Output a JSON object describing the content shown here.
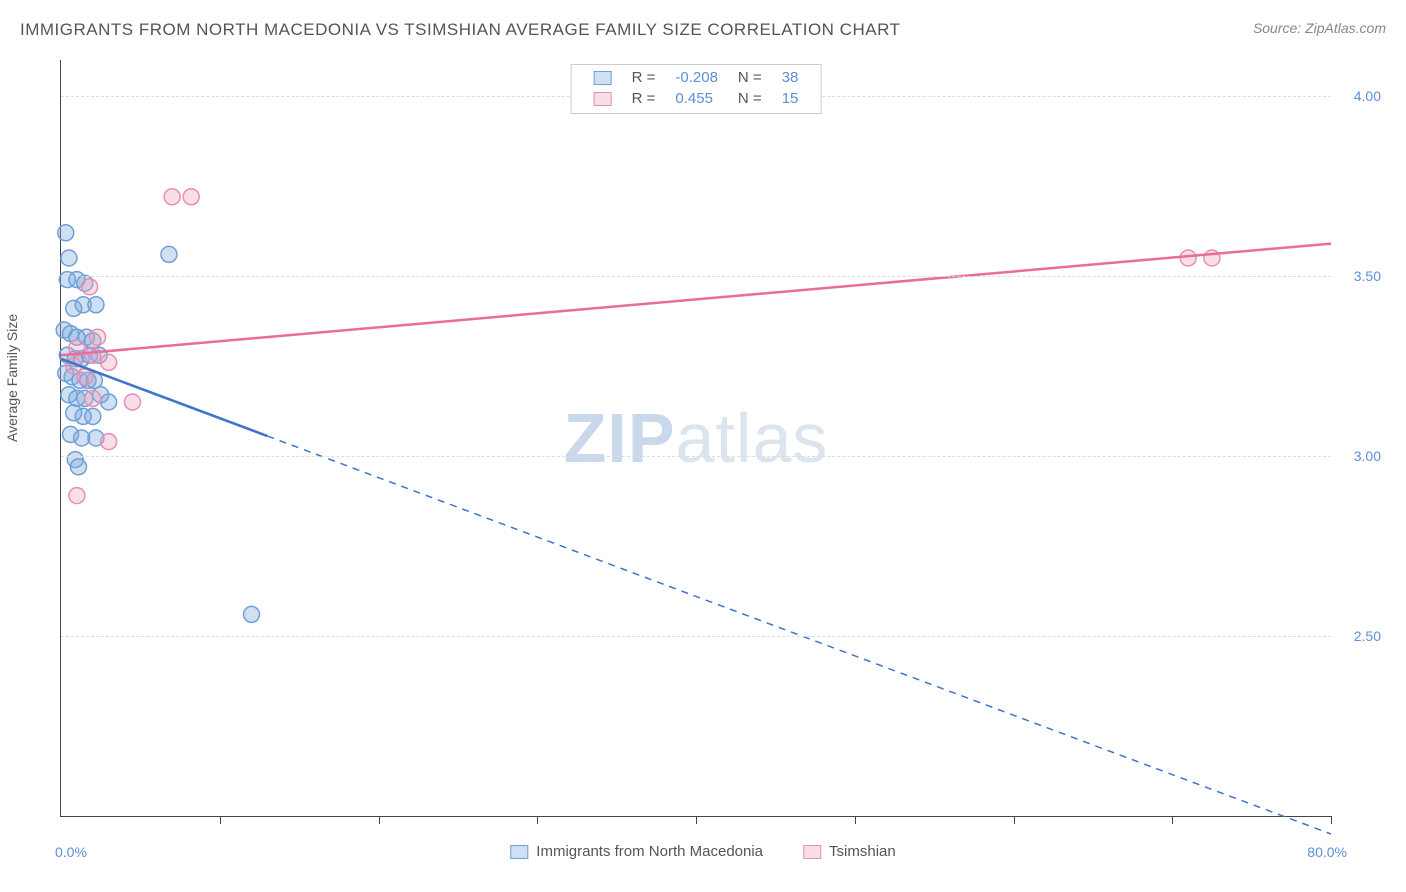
{
  "title": "IMMIGRANTS FROM NORTH MACEDONIA VS TSIMSHIAN AVERAGE FAMILY SIZE CORRELATION CHART",
  "source_label": "Source:",
  "source_name": "ZipAtlas.com",
  "y_axis_label": "Average Family Size",
  "watermark_a": "ZIP",
  "watermark_b": "atlas",
  "chart": {
    "type": "scatter-with-regression",
    "xlim": [
      0,
      80
    ],
    "ylim": [
      2.0,
      4.1
    ],
    "x_min_label": "0.0%",
    "x_max_label": "80.0%",
    "y_ticks": [
      2.5,
      3.0,
      3.5,
      4.0
    ],
    "y_tick_labels": [
      "2.50",
      "3.00",
      "3.50",
      "4.00"
    ],
    "x_ticks": [
      10,
      20,
      30,
      40,
      50,
      60,
      70,
      80
    ],
    "grid_color": "#dddddd",
    "axis_color": "#444444",
    "tick_label_color": "#5b8fd6",
    "background_color": "#ffffff",
    "marker_radius": 8,
    "marker_stroke_width": 1.5,
    "line_width": 2.5,
    "series": [
      {
        "name": "Immigrants from North Macedonia",
        "color_fill": "rgba(120,165,220,0.35)",
        "color_stroke": "#6f9fd8",
        "line_color": "#3f74c8",
        "r_value": "-0.208",
        "n_value": "38",
        "regression": {
          "x1": 0,
          "y1": 3.27,
          "x2": 80,
          "y2": 1.95,
          "solid_until_x": 13
        },
        "points": [
          [
            0.3,
            3.62
          ],
          [
            0.5,
            3.55
          ],
          [
            0.4,
            3.49
          ],
          [
            1.0,
            3.49
          ],
          [
            1.5,
            3.48
          ],
          [
            0.8,
            3.41
          ],
          [
            1.4,
            3.42
          ],
          [
            2.2,
            3.42
          ],
          [
            6.8,
            3.56
          ],
          [
            0.2,
            3.35
          ],
          [
            0.6,
            3.34
          ],
          [
            1.0,
            3.33
          ],
          [
            1.6,
            3.33
          ],
          [
            2.0,
            3.32
          ],
          [
            0.4,
            3.28
          ],
          [
            0.9,
            3.27
          ],
          [
            1.3,
            3.27
          ],
          [
            1.8,
            3.28
          ],
          [
            2.4,
            3.28
          ],
          [
            0.3,
            3.23
          ],
          [
            0.7,
            3.22
          ],
          [
            1.2,
            3.21
          ],
          [
            1.7,
            3.21
          ],
          [
            2.1,
            3.21
          ],
          [
            0.5,
            3.17
          ],
          [
            1.0,
            3.16
          ],
          [
            1.5,
            3.16
          ],
          [
            2.5,
            3.17
          ],
          [
            3.0,
            3.15
          ],
          [
            0.8,
            3.12
          ],
          [
            1.4,
            3.11
          ],
          [
            2.0,
            3.11
          ],
          [
            0.6,
            3.06
          ],
          [
            1.3,
            3.05
          ],
          [
            2.2,
            3.05
          ],
          [
            0.9,
            2.99
          ],
          [
            1.1,
            2.97
          ],
          [
            12.0,
            2.56
          ]
        ]
      },
      {
        "name": "Tsimshian",
        "color_fill": "rgba(240,160,185,0.35)",
        "color_stroke": "#e68fb0",
        "line_color": "#e86d9a",
        "r_value": "0.455",
        "n_value": "15",
        "regression": {
          "x1": 0,
          "y1": 3.28,
          "x2": 80,
          "y2": 3.59,
          "solid_until_x": 80
        },
        "points": [
          [
            7.0,
            3.72
          ],
          [
            8.2,
            3.72
          ],
          [
            1.8,
            3.47
          ],
          [
            2.3,
            3.33
          ],
          [
            1.0,
            3.3
          ],
          [
            2.0,
            3.28
          ],
          [
            3.0,
            3.26
          ],
          [
            0.8,
            3.25
          ],
          [
            1.5,
            3.22
          ],
          [
            2.0,
            3.16
          ],
          [
            4.5,
            3.15
          ],
          [
            3.0,
            3.04
          ],
          [
            1.0,
            2.89
          ],
          [
            71.0,
            3.55
          ],
          [
            72.5,
            3.55
          ]
        ]
      }
    ]
  },
  "legend_top": {
    "r_label": "R =",
    "n_label": "N ="
  }
}
